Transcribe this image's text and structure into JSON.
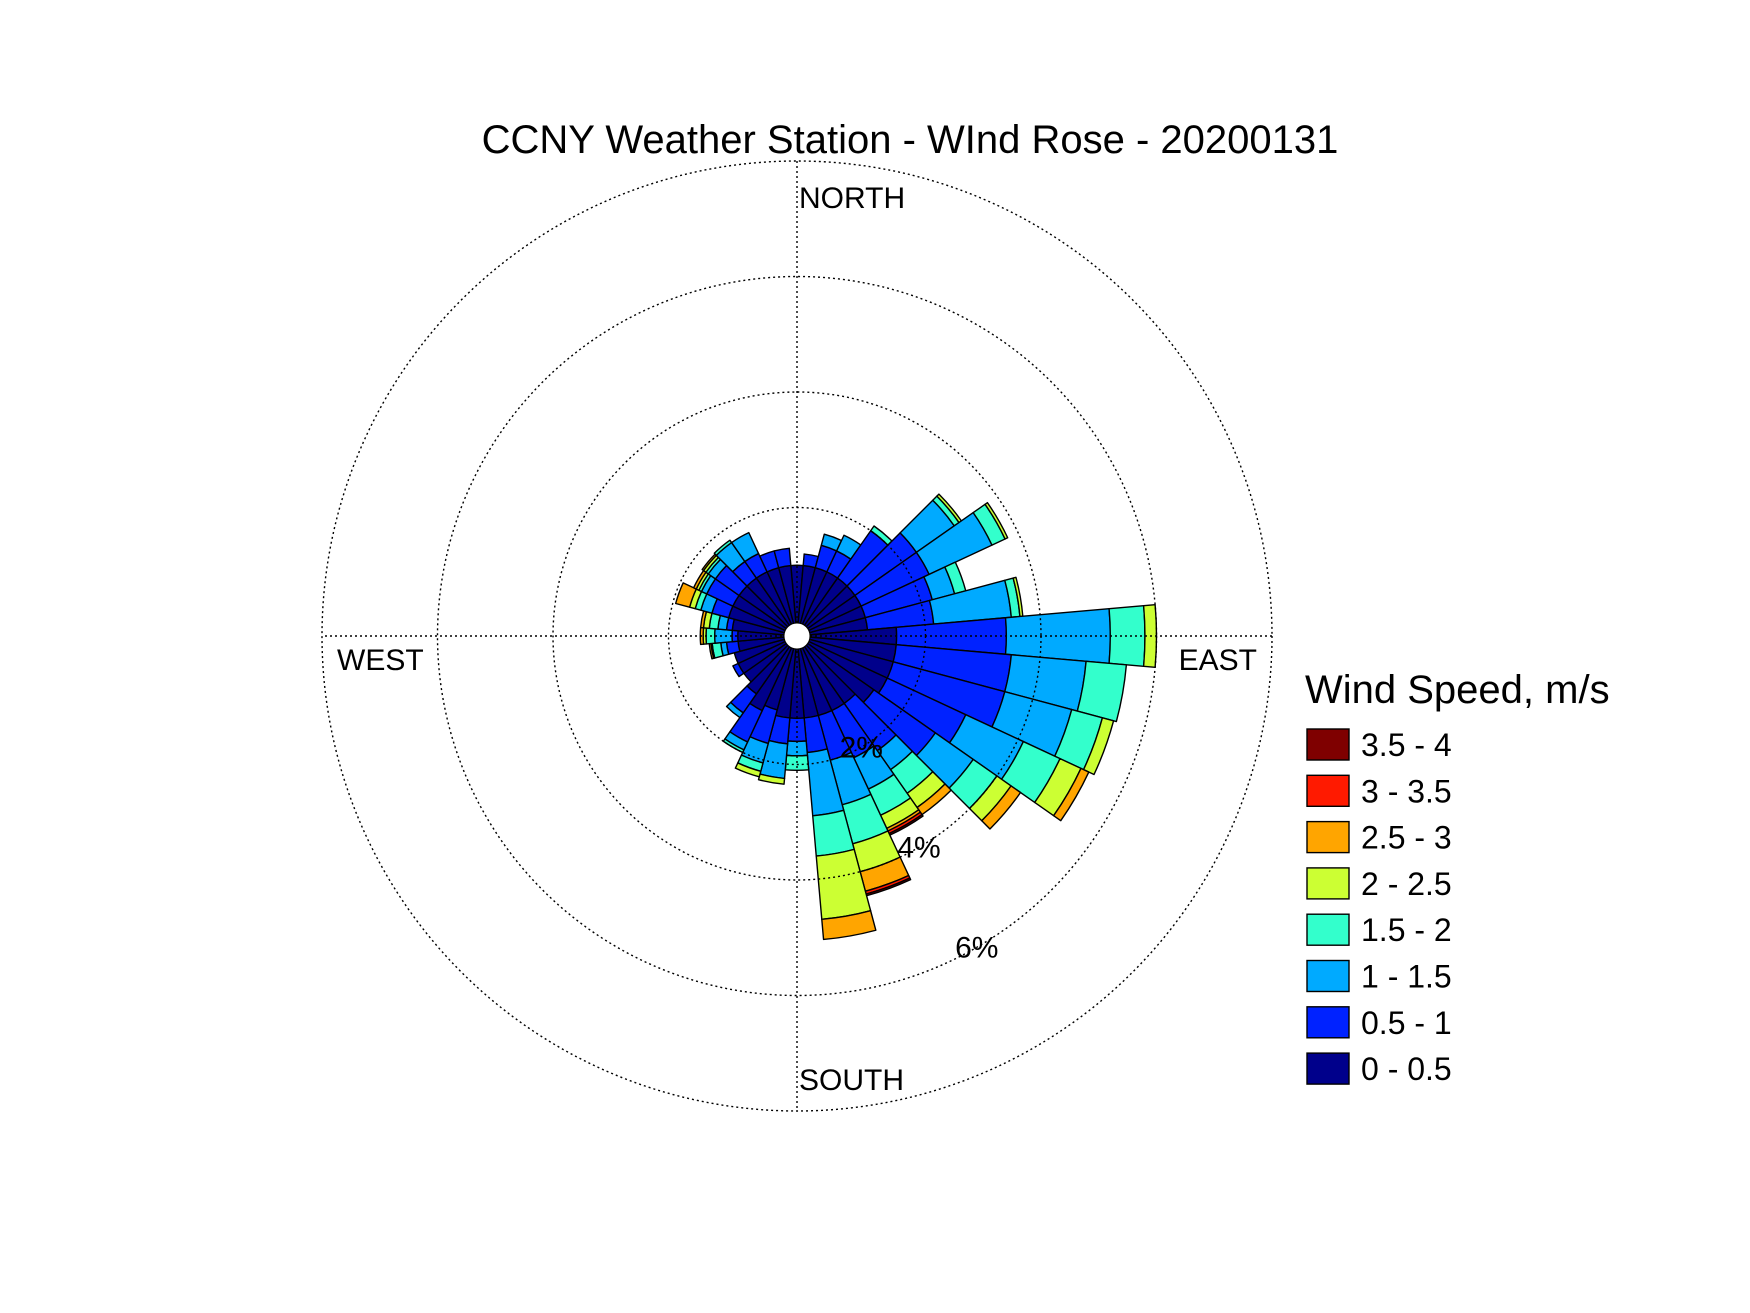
{
  "chart_data": {
    "type": "wind-rose",
    "title": "CCNY Weather Station - WInd Rose - 20200131",
    "direction_labels": {
      "north": "NORTH",
      "east": "EAST",
      "south": "SOUTH",
      "west": "WEST"
    },
    "radial_unit": "%",
    "radial_max": 8,
    "ring_values": [
      2,
      4,
      6
    ],
    "ring_labels": [
      "2%",
      "4%",
      "6%"
    ],
    "grid": true,
    "legend_position": "right",
    "legend_title": "Wind Speed, m/s",
    "speed_bins": [
      {
        "label": "0 - 0.5",
        "color": "#00008B"
      },
      {
        "label": "0.5 - 1",
        "color": "#0022FF"
      },
      {
        "label": "1 - 1.5",
        "color": "#00AAFF"
      },
      {
        "label": "1.5 - 2",
        "color": "#33FFCC"
      },
      {
        "label": "2 - 2.5",
        "color": "#CCFF33"
      },
      {
        "label": "2.5 - 3",
        "color": "#FFA500"
      },
      {
        "label": "3 - 3.5",
        "color": "#FF1A00"
      },
      {
        "label": "3.5 - 4",
        "color": "#7F0000"
      }
    ],
    "sector_width_deg": 10,
    "sectors": [
      {
        "direction_deg": 0,
        "cumulative_pct": [
          1.0,
          1.0,
          1.0,
          1.0,
          1.0,
          1.0,
          1.0,
          1.0
        ]
      },
      {
        "direction_deg": 10,
        "cumulative_pct": [
          1.0,
          1.2,
          1.2,
          1.2,
          1.2,
          1.2,
          1.2,
          1.2
        ]
      },
      {
        "direction_deg": 20,
        "cumulative_pct": [
          1.0,
          1.4,
          1.6,
          1.6,
          1.6,
          1.6,
          1.6,
          1.6
        ]
      },
      {
        "direction_deg": 30,
        "cumulative_pct": [
          1.0,
          1.4,
          1.7,
          1.7,
          1.7,
          1.7,
          1.7,
          1.7
        ]
      },
      {
        "direction_deg": 40,
        "cumulative_pct": [
          1.0,
          2.0,
          2.0,
          2.1,
          2.1,
          2.1,
          2.1,
          2.1
        ]
      },
      {
        "direction_deg": 50,
        "cumulative_pct": [
          1.0,
          2.3,
          3.1,
          3.2,
          3.25,
          3.25,
          3.25,
          3.25
        ]
      },
      {
        "direction_deg": 60,
        "cumulative_pct": [
          1.0,
          2.3,
          3.5,
          3.75,
          3.8,
          3.8,
          3.8,
          3.8
        ]
      },
      {
        "direction_deg": 70,
        "cumulative_pct": [
          1.0,
          2.2,
          2.6,
          2.8,
          2.8,
          2.8,
          2.8,
          2.8
        ]
      },
      {
        "direction_deg": 80,
        "cumulative_pct": [
          1.0,
          2.15,
          3.5,
          3.65,
          3.7,
          3.7,
          3.7,
          3.7
        ]
      },
      {
        "direction_deg": 90,
        "cumulative_pct": [
          1.5,
          3.4,
          5.2,
          5.8,
          6.0,
          6.0,
          6.0,
          6.0
        ]
      },
      {
        "direction_deg": 100,
        "cumulative_pct": [
          1.5,
          3.5,
          4.8,
          5.5,
          5.5,
          5.5,
          5.5,
          5.5
        ]
      },
      {
        "direction_deg": 110,
        "cumulative_pct": [
          1.5,
          3.5,
          4.7,
          5.25,
          5.45,
          5.45,
          5.45,
          5.45
        ]
      },
      {
        "direction_deg": 120,
        "cumulative_pct": [
          1.5,
          3.0,
          4.1,
          4.8,
          5.2,
          5.35,
          5.35,
          5.35
        ]
      },
      {
        "direction_deg": 130,
        "cumulative_pct": [
          1.4,
          2.7,
          3.5,
          4.0,
          4.3,
          4.5,
          4.5,
          4.5
        ]
      },
      {
        "direction_deg": 140,
        "cumulative_pct": [
          1.2,
          2.2,
          2.6,
          3.1,
          3.4,
          3.55,
          3.55,
          3.55
        ]
      },
      {
        "direction_deg": 150,
        "cumulative_pct": [
          1.2,
          2.1,
          2.7,
          3.2,
          3.45,
          3.5,
          3.55,
          3.58
        ]
      },
      {
        "direction_deg": 160,
        "cumulative_pct": [
          1.2,
          2.0,
          2.8,
          3.5,
          4.0,
          4.35,
          4.4,
          4.43
        ]
      },
      {
        "direction_deg": 170,
        "cumulative_pct": [
          1.2,
          1.8,
          2.9,
          3.6,
          4.7,
          5.05,
          5.05,
          5.05
        ]
      },
      {
        "direction_deg": 180,
        "cumulative_pct": [
          1.2,
          1.6,
          1.85,
          2.1,
          2.1,
          2.1,
          2.1,
          2.1
        ]
      },
      {
        "direction_deg": 190,
        "cumulative_pct": [
          1.2,
          1.65,
          2.25,
          2.25,
          2.35,
          2.35,
          2.35,
          2.35
        ]
      },
      {
        "direction_deg": 200,
        "cumulative_pct": [
          1.1,
          1.7,
          2.05,
          2.2,
          2.3,
          2.3,
          2.3,
          2.3
        ]
      },
      {
        "direction_deg": 210,
        "cumulative_pct": [
          1.2,
          1.8,
          1.95,
          2.0,
          2.0,
          2.0,
          2.0,
          2.0
        ]
      },
      {
        "direction_deg": 220,
        "cumulative_pct": [
          1.0,
          1.4,
          1.5,
          1.5,
          1.5,
          1.5,
          1.5,
          1.5
        ]
      },
      {
        "direction_deg": 230,
        "cumulative_pct": [
          0.9,
          0.9,
          0.9,
          0.9,
          0.9,
          0.9,
          0.9,
          0.9
        ]
      },
      {
        "direction_deg": 240,
        "cumulative_pct": [
          0.9,
          1.0,
          1.0,
          1.0,
          1.0,
          1.0,
          1.0,
          1.0
        ]
      },
      {
        "direction_deg": 250,
        "cumulative_pct": [
          0.9,
          0.9,
          0.9,
          0.9,
          0.9,
          0.9,
          0.9,
          0.9
        ]
      },
      {
        "direction_deg": 260,
        "cumulative_pct": [
          0.8,
          1.0,
          1.1,
          1.25,
          1.27,
          1.3,
          1.3,
          1.3
        ]
      },
      {
        "direction_deg": 270,
        "cumulative_pct": [
          0.8,
          0.9,
          1.2,
          1.35,
          1.4,
          1.45,
          1.45,
          1.45
        ]
      },
      {
        "direction_deg": 280,
        "cumulative_pct": [
          0.9,
          1.0,
          1.15,
          1.3,
          1.4,
          1.45,
          1.45,
          1.45
        ]
      },
      {
        "direction_deg": 290,
        "cumulative_pct": [
          1.0,
          1.3,
          1.5,
          1.6,
          1.7,
          1.95,
          1.95,
          1.95
        ]
      },
      {
        "direction_deg": 300,
        "cumulative_pct": [
          1.0,
          1.5,
          1.6,
          1.65,
          1.7,
          1.75,
          1.75,
          1.75
        ]
      },
      {
        "direction_deg": 310,
        "cumulative_pct": [
          1.0,
          1.5,
          1.65,
          1.7,
          1.75,
          1.78,
          1.78,
          1.78
        ]
      },
      {
        "direction_deg": 320,
        "cumulative_pct": [
          1.0,
          1.35,
          1.75,
          1.8,
          1.8,
          1.8,
          1.8,
          1.8
        ]
      },
      {
        "direction_deg": 330,
        "cumulative_pct": [
          1.0,
          1.35,
          1.75,
          1.75,
          1.75,
          1.75,
          1.75,
          1.75
        ]
      },
      {
        "direction_deg": 340,
        "cumulative_pct": [
          1.0,
          1.3,
          1.3,
          1.3,
          1.3,
          1.3,
          1.3,
          1.3
        ]
      },
      {
        "direction_deg": 350,
        "cumulative_pct": [
          1.0,
          1.3,
          1.3,
          1.3,
          1.3,
          1.3,
          1.3,
          1.3
        ]
      }
    ]
  }
}
